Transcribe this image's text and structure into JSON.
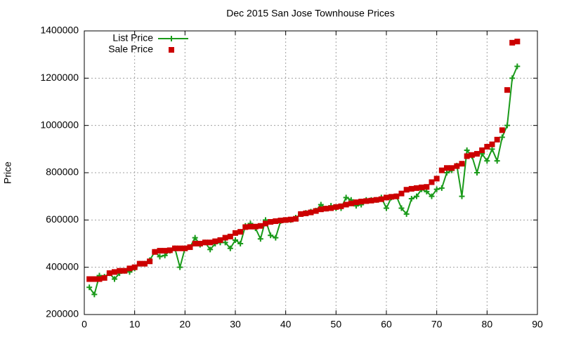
{
  "chart_data": {
    "type": "line",
    "title": "Dec 2015 San Jose Townhouse Prices",
    "y_label": "Price",
    "x": [
      1,
      2,
      3,
      4,
      5,
      6,
      7,
      8,
      9,
      10,
      11,
      12,
      13,
      14,
      15,
      16,
      17,
      18,
      19,
      20,
      21,
      22,
      23,
      24,
      25,
      26,
      27,
      28,
      29,
      30,
      31,
      32,
      33,
      34,
      35,
      36,
      37,
      38,
      39,
      40,
      41,
      42,
      43,
      44,
      45,
      46,
      47,
      48,
      49,
      50,
      51,
      52,
      53,
      54,
      55,
      56,
      57,
      58,
      59,
      60,
      61,
      62,
      63,
      64,
      65,
      66,
      67,
      68,
      69,
      70,
      71,
      72,
      73,
      74,
      75,
      76,
      77,
      78,
      79,
      80,
      81,
      82,
      83,
      84,
      85,
      86
    ],
    "series": [
      {
        "name": "List Price",
        "color": "#1a9a1a",
        "style": "linespoints",
        "values": [
          315000,
          285000,
          365000,
          360000,
          375000,
          350000,
          375000,
          385000,
          380000,
          395000,
          415000,
          415000,
          430000,
          465000,
          445000,
          450000,
          470000,
          480000,
          400000,
          480000,
          485000,
          525000,
          495000,
          505000,
          475000,
          500000,
          505000,
          505000,
          480000,
          515000,
          500000,
          575000,
          585000,
          565000,
          520000,
          600000,
          535000,
          525000,
          595000,
          600000,
          600000,
          610000,
          625000,
          630000,
          635000,
          640000,
          665000,
          648000,
          660000,
          650000,
          650000,
          695000,
          685000,
          660000,
          665000,
          685000,
          685000,
          685000,
          695000,
          650000,
          695000,
          700000,
          650000,
          625000,
          690000,
          700000,
          730000,
          720000,
          700000,
          730000,
          735000,
          800000,
          810000,
          830000,
          700000,
          895000,
          870000,
          800000,
          880000,
          850000,
          900000,
          850000,
          950000,
          1000000,
          1200000,
          1250000
        ]
      },
      {
        "name": "Sale Price",
        "color": "#cc0000",
        "style": "points",
        "values": [
          350000,
          350000,
          350000,
          355000,
          375000,
          380000,
          385000,
          385000,
          395000,
          400000,
          415000,
          415000,
          425000,
          465000,
          470000,
          470000,
          472000,
          480000,
          480000,
          480000,
          485000,
          500000,
          500000,
          505000,
          505000,
          510000,
          515000,
          525000,
          530000,
          545000,
          550000,
          570000,
          572000,
          572000,
          575000,
          585000,
          592000,
          595000,
          598000,
          600000,
          602000,
          605000,
          625000,
          628000,
          632000,
          638000,
          645000,
          648000,
          650000,
          655000,
          658000,
          665000,
          670000,
          675000,
          678000,
          680000,
          682000,
          685000,
          688000,
          695000,
          698000,
          700000,
          712000,
          728000,
          732000,
          735000,
          738000,
          740000,
          760000,
          775000,
          810000,
          820000,
          820000,
          828000,
          838000,
          870000,
          875000,
          880000,
          895000,
          910000,
          920000,
          940000,
          980000,
          1150000,
          1350000,
          1355000
        ]
      }
    ],
    "xlim": [
      0,
      90
    ],
    "xticks": [
      0,
      10,
      20,
      30,
      40,
      50,
      60,
      70,
      80,
      90
    ],
    "ylim": [
      200000,
      1400000
    ],
    "yticks": [
      200000,
      400000,
      600000,
      800000,
      1000000,
      1200000,
      1400000
    ],
    "grid": true,
    "legend": "top left"
  }
}
